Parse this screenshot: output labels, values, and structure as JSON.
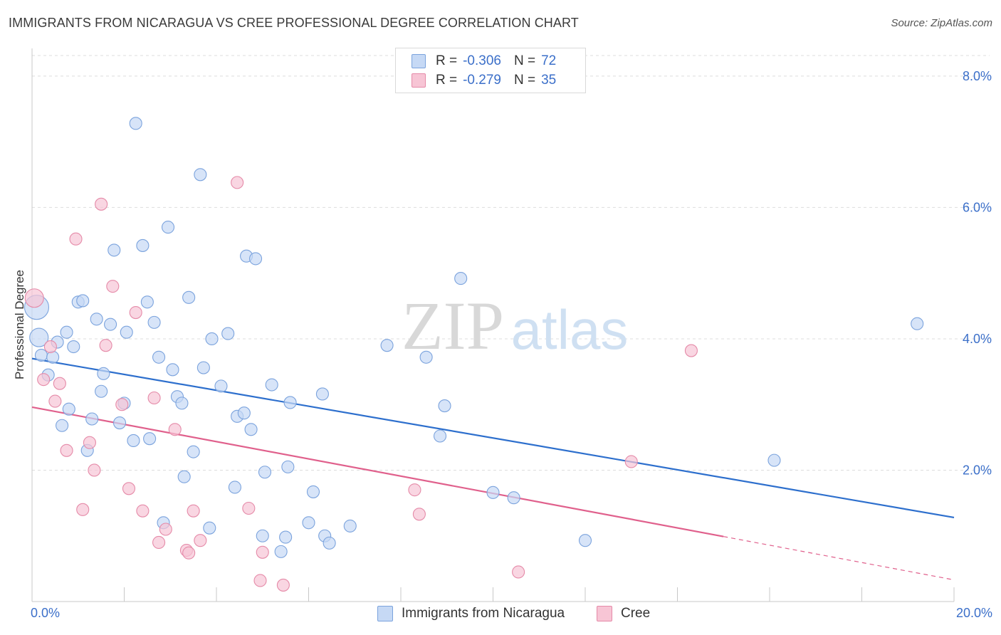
{
  "header": {
    "title": "IMMIGRANTS FROM NICARAGUA VS CREE PROFESSIONAL DEGREE CORRELATION CHART",
    "source": "Source: ZipAtlas.com"
  },
  "watermark": {
    "zip": "ZIP",
    "atlas": "atlas"
  },
  "legend": {
    "rows": [
      {
        "r_label": "R =",
        "r_value": "-0.306",
        "n_label": "N =",
        "n_value": "72"
      },
      {
        "r_label": "R =",
        "r_value": "-0.279",
        "n_label": "N =",
        "n_value": "35"
      }
    ]
  },
  "colors": {
    "blue_fill": "#c6d9f5",
    "blue_stroke": "#7ba3dd",
    "blue_line": "#2d6fcd",
    "pink_fill": "#f7c5d5",
    "pink_stroke": "#e58aa8",
    "pink_line": "#e0608c",
    "axis_text": "#3b6fc9",
    "grid": "#dddddd"
  },
  "chart_data": {
    "type": "scatter",
    "title": "IMMIGRANTS FROM NICARAGUA VS CREE PROFESSIONAL DEGREE CORRELATION CHART",
    "xlabel": "",
    "ylabel": "Professional Degree",
    "xlim": [
      0,
      20
    ],
    "ylim": [
      0,
      8.4
    ],
    "x_tick_labels": [
      "0.0%",
      "20.0%"
    ],
    "y_ticks": [
      2,
      4,
      6,
      8
    ],
    "y_tick_labels": [
      "2.0%",
      "4.0%",
      "6.0%",
      "8.0%"
    ],
    "grid": true,
    "legend_position": "top-center",
    "series": [
      {
        "name": "Immigrants from Nicaragua",
        "color": "#7ba3dd",
        "points": [
          {
            "x": 0.1,
            "y": 4.48,
            "s": "l"
          },
          {
            "x": 0.15,
            "y": 4.02,
            "s": "m"
          },
          {
            "x": 0.2,
            "y": 3.75
          },
          {
            "x": 0.35,
            "y": 3.45
          },
          {
            "x": 0.45,
            "y": 3.72
          },
          {
            "x": 0.55,
            "y": 3.95
          },
          {
            "x": 0.65,
            "y": 2.68
          },
          {
            "x": 0.75,
            "y": 4.1
          },
          {
            "x": 0.8,
            "y": 2.93
          },
          {
            "x": 0.9,
            "y": 3.88
          },
          {
            "x": 1.0,
            "y": 4.56
          },
          {
            "x": 1.1,
            "y": 4.58
          },
          {
            "x": 1.2,
            "y": 2.3
          },
          {
            "x": 1.3,
            "y": 2.78
          },
          {
            "x": 1.4,
            "y": 4.3
          },
          {
            "x": 1.5,
            "y": 3.2
          },
          {
            "x": 1.55,
            "y": 3.47
          },
          {
            "x": 1.7,
            "y": 4.22
          },
          {
            "x": 1.78,
            "y": 5.35
          },
          {
            "x": 1.9,
            "y": 2.72
          },
          {
            "x": 2.0,
            "y": 3.02
          },
          {
            "x": 2.05,
            "y": 4.1
          },
          {
            "x": 2.2,
            "y": 2.45
          },
          {
            "x": 2.25,
            "y": 7.28
          },
          {
            "x": 2.4,
            "y": 5.42
          },
          {
            "x": 2.5,
            "y": 4.56
          },
          {
            "x": 2.55,
            "y": 2.48
          },
          {
            "x": 2.65,
            "y": 4.25
          },
          {
            "x": 2.75,
            "y": 3.72
          },
          {
            "x": 2.85,
            "y": 1.2
          },
          {
            "x": 2.95,
            "y": 5.7
          },
          {
            "x": 3.05,
            "y": 3.53
          },
          {
            "x": 3.15,
            "y": 3.12
          },
          {
            "x": 3.25,
            "y": 3.02
          },
          {
            "x": 3.3,
            "y": 1.9
          },
          {
            "x": 3.4,
            "y": 4.63
          },
          {
            "x": 3.5,
            "y": 2.28
          },
          {
            "x": 3.65,
            "y": 6.5
          },
          {
            "x": 3.72,
            "y": 3.56
          },
          {
            "x": 3.85,
            "y": 1.12
          },
          {
            "x": 3.9,
            "y": 4.0
          },
          {
            "x": 4.1,
            "y": 3.28
          },
          {
            "x": 4.25,
            "y": 4.08
          },
          {
            "x": 4.4,
            "y": 1.74
          },
          {
            "x": 4.45,
            "y": 2.82
          },
          {
            "x": 4.6,
            "y": 2.87
          },
          {
            "x": 4.65,
            "y": 5.26
          },
          {
            "x": 4.75,
            "y": 2.62
          },
          {
            "x": 4.85,
            "y": 5.22
          },
          {
            "x": 5.0,
            "y": 1.0
          },
          {
            "x": 5.05,
            "y": 1.97
          },
          {
            "x": 5.2,
            "y": 3.3
          },
          {
            "x": 5.4,
            "y": 0.76
          },
          {
            "x": 5.5,
            "y": 0.98
          },
          {
            "x": 5.55,
            "y": 2.05
          },
          {
            "x": 5.6,
            "y": 3.03
          },
          {
            "x": 6.0,
            "y": 1.2
          },
          {
            "x": 6.1,
            "y": 1.67
          },
          {
            "x": 6.3,
            "y": 3.16
          },
          {
            "x": 6.35,
            "y": 1.0
          },
          {
            "x": 6.45,
            "y": 0.89
          },
          {
            "x": 6.9,
            "y": 1.15
          },
          {
            "x": 7.7,
            "y": 3.9
          },
          {
            "x": 8.55,
            "y": 3.72
          },
          {
            "x": 8.85,
            "y": 2.52
          },
          {
            "x": 8.95,
            "y": 2.98
          },
          {
            "x": 9.3,
            "y": 4.92
          },
          {
            "x": 10.0,
            "y": 1.66
          },
          {
            "x": 10.45,
            "y": 1.58
          },
          {
            "x": 12.0,
            "y": 0.93
          },
          {
            "x": 16.1,
            "y": 2.15
          },
          {
            "x": 19.2,
            "y": 4.23
          }
        ]
      },
      {
        "name": "Cree",
        "color": "#e58aa8",
        "points": [
          {
            "x": 0.05,
            "y": 4.62,
            "s": "m"
          },
          {
            "x": 0.25,
            "y": 3.38
          },
          {
            "x": 0.4,
            "y": 3.88
          },
          {
            "x": 0.5,
            "y": 3.05
          },
          {
            "x": 0.6,
            "y": 3.32
          },
          {
            "x": 0.75,
            "y": 2.3
          },
          {
            "x": 0.95,
            "y": 5.52
          },
          {
            "x": 1.1,
            "y": 1.4
          },
          {
            "x": 1.25,
            "y": 2.42
          },
          {
            "x": 1.35,
            "y": 2.0
          },
          {
            "x": 1.5,
            "y": 6.05
          },
          {
            "x": 1.6,
            "y": 3.9
          },
          {
            "x": 1.75,
            "y": 4.8
          },
          {
            "x": 1.95,
            "y": 3.0
          },
          {
            "x": 2.1,
            "y": 1.72
          },
          {
            "x": 2.25,
            "y": 4.4
          },
          {
            "x": 2.4,
            "y": 1.38
          },
          {
            "x": 2.65,
            "y": 3.1
          },
          {
            "x": 2.75,
            "y": 0.9
          },
          {
            "x": 2.9,
            "y": 1.1
          },
          {
            "x": 3.1,
            "y": 2.62
          },
          {
            "x": 3.35,
            "y": 0.78
          },
          {
            "x": 3.4,
            "y": 0.74
          },
          {
            "x": 3.5,
            "y": 1.38
          },
          {
            "x": 3.65,
            "y": 0.93
          },
          {
            "x": 4.45,
            "y": 6.38
          },
          {
            "x": 4.7,
            "y": 1.42
          },
          {
            "x": 4.95,
            "y": 0.32
          },
          {
            "x": 5.0,
            "y": 0.75
          },
          {
            "x": 5.45,
            "y": 0.25
          },
          {
            "x": 8.3,
            "y": 1.7
          },
          {
            "x": 8.4,
            "y": 1.33
          },
          {
            "x": 10.55,
            "y": 0.45
          },
          {
            "x": 13.0,
            "y": 2.13
          },
          {
            "x": 14.3,
            "y": 3.82
          }
        ]
      }
    ],
    "trendlines": [
      {
        "series": "Immigrants from Nicaragua",
        "x0": 0,
        "y0": 3.7,
        "x1": 20,
        "y1": 1.28
      },
      {
        "series": "Cree",
        "x0": 0,
        "y0": 2.96,
        "x1": 15,
        "y1": 0.99,
        "dashed_to_x": 20,
        "dashed_to_y": 0.33
      }
    ]
  }
}
